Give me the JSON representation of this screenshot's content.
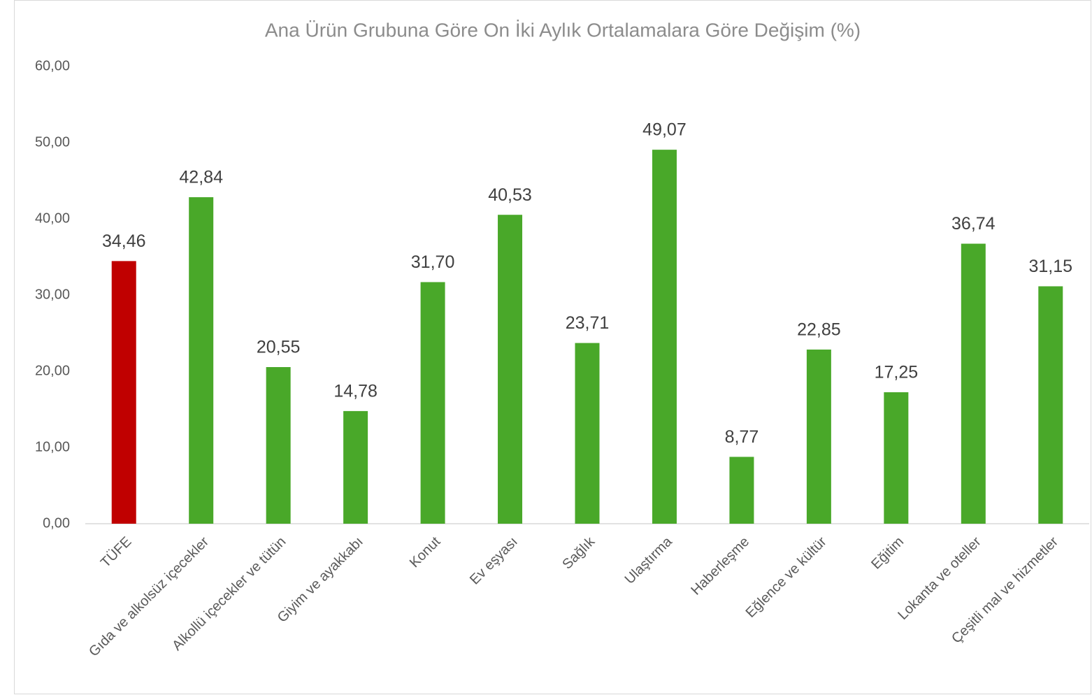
{
  "chart_data": {
    "type": "bar",
    "title": "Ana Ürün Grubuna Göre On İki Aylık Ortalamalara Göre Değişim (%)",
    "categories": [
      "TÜFE",
      "Gıda ve alkolsüz içecekler",
      "Alkollü içecekler ve tütün",
      "Giyim ve ayakkabı",
      "Konut",
      "Ev eşyası",
      "Sağlık",
      "Ulaştırma",
      "Haberleşme",
      "Eğlence ve kültür",
      "Eğitim",
      "Lokanta ve oteller",
      "Çeşitli mal ve hizmetler"
    ],
    "values": [
      34.46,
      42.84,
      20.55,
      14.78,
      31.7,
      40.53,
      23.71,
      49.07,
      8.77,
      22.85,
      17.25,
      36.74,
      31.15
    ],
    "value_labels": [
      "34,46",
      "42,84",
      "20,55",
      "14,78",
      "31,70",
      "40,53",
      "23,71",
      "49,07",
      "8,77",
      "22,85",
      "17,25",
      "36,74",
      "31,15"
    ],
    "colors": [
      "#c00000",
      "#49a829",
      "#49a829",
      "#49a829",
      "#49a829",
      "#49a829",
      "#49a829",
      "#49a829",
      "#49a829",
      "#49a829",
      "#49a829",
      "#49a829",
      "#49a829"
    ],
    "ylim": [
      0,
      60
    ],
    "yticks": [
      {
        "value": 0,
        "label": "0,00"
      },
      {
        "value": 10,
        "label": "10,00"
      },
      {
        "value": 20,
        "label": "20,00"
      },
      {
        "value": 30,
        "label": "30,00"
      },
      {
        "value": 40,
        "label": "40,00"
      },
      {
        "value": 50,
        "label": "50,00"
      },
      {
        "value": 60,
        "label": "60,00"
      }
    ],
    "grid": false
  }
}
